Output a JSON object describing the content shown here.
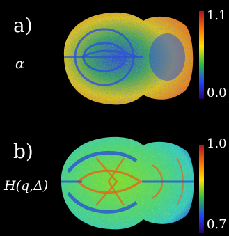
{
  "panels": [
    {
      "label": "a)",
      "parameter": "α",
      "scale": {
        "max": "1.1",
        "min": "0.0"
      },
      "dominant_colors": [
        "#e86a1e",
        "#d9c21c",
        "#2a4fd6",
        "#39c23a"
      ]
    },
    {
      "label": "b)",
      "parameter": "H(q,Δ)",
      "scale": {
        "max": "1.0",
        "min": "0.7"
      },
      "dominant_colors": [
        "#36c8a0",
        "#7fdc2e",
        "#e06a1a",
        "#2a52d8"
      ]
    }
  ],
  "colorbar_colors": [
    "#b01020",
    "#ff7a00",
    "#ffe000",
    "#30c040",
    "#2040ff",
    "#2a0070"
  ]
}
